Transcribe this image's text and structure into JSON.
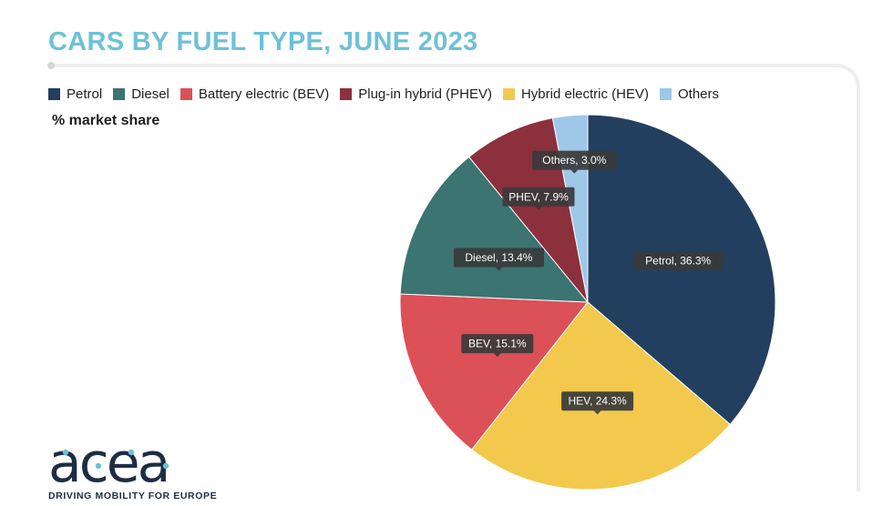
{
  "header": {
    "title": "CARS BY FUEL TYPE, JUNE 2023",
    "unit_label": "% market share"
  },
  "legend": {
    "items": [
      {
        "label": "Petrol",
        "color": "#233f5f"
      },
      {
        "label": "Diesel",
        "color": "#3b7471"
      },
      {
        "label": "Battery electric (BEV)",
        "color": "#dc5058"
      },
      {
        "label": "Plug-in hybrid (PHEV)",
        "color": "#8c303e"
      },
      {
        "label": "Hybrid electric (HEV)",
        "color": "#f2c94c"
      },
      {
        "label": "Others",
        "color": "#9fc7e8"
      }
    ]
  },
  "chart_data": {
    "type": "pie",
    "title": "CARS BY FUEL TYPE, JUNE 2023",
    "unit": "% market share",
    "legend_position": "top",
    "slices": [
      {
        "label": "Petrol",
        "data_label": "Petrol, 36.3%",
        "value": 36.3,
        "color": "#233f5f"
      },
      {
        "label": "HEV",
        "data_label": "HEV, 24.3%",
        "value": 24.3,
        "color": "#f2c94c"
      },
      {
        "label": "BEV",
        "data_label": "BEV, 15.1%",
        "value": 15.1,
        "color": "#dc5058"
      },
      {
        "label": "Diesel",
        "data_label": "Diesel, 13.4%",
        "value": 13.4,
        "color": "#3b7471"
      },
      {
        "label": "PHEV",
        "data_label": "PHEV, 7.9%",
        "value": 7.9,
        "color": "#8c303e"
      },
      {
        "label": "Others",
        "data_label": "Others, 3.0%",
        "value": 3.0,
        "color": "#9fc7e8"
      }
    ]
  },
  "branding": {
    "logo_text": "acea",
    "tagline": "DRIVING MOBILITY FOR EUROPE",
    "logo_color": "#1f2d44",
    "logo_dot_color": "#6ec1d8"
  }
}
